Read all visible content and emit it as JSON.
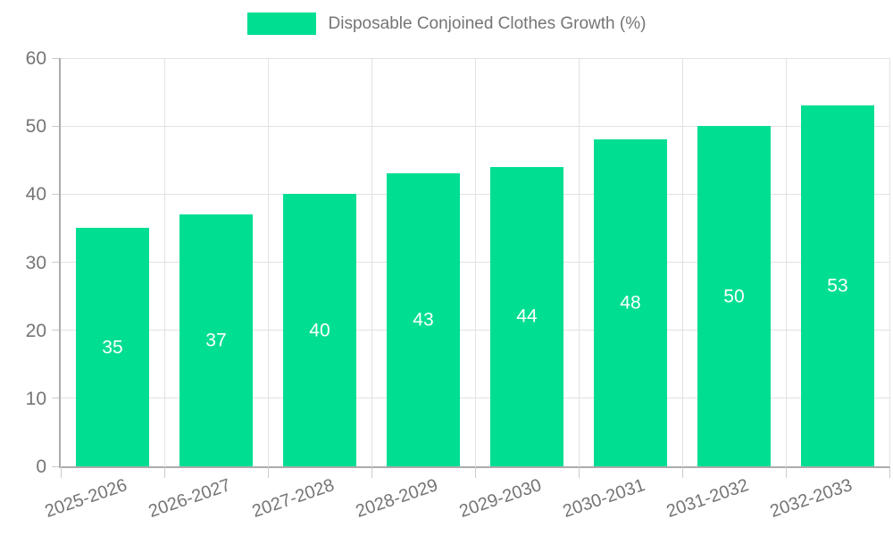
{
  "legend": {
    "label": "Disposable Conjoined Clothes Growth (%)"
  },
  "chart_data": {
    "type": "bar",
    "title": "Disposable Conjoined Clothes Growth (%)",
    "categories": [
      "2025-2026",
      "2026-2027",
      "2027-2028",
      "2028-2029",
      "2029-2030",
      "2030-2031",
      "2031-2032",
      "2032-2033"
    ],
    "values": [
      35,
      37,
      40,
      43,
      44,
      48,
      50,
      53
    ],
    "xlabel": "",
    "ylabel": "",
    "ylim": [
      0,
      60
    ],
    "yticks": [
      0,
      10,
      20,
      30,
      40,
      50,
      60
    ],
    "grid": true,
    "legend_position": "top",
    "bar_labels_shown": true,
    "colors": {
      "bar": "#00DE92",
      "bar_label": "#ffffff",
      "axis_text": "#757575",
      "grid_line": "#e2e2e2",
      "axis_line": "#ababab",
      "background": "#ffffff"
    }
  }
}
